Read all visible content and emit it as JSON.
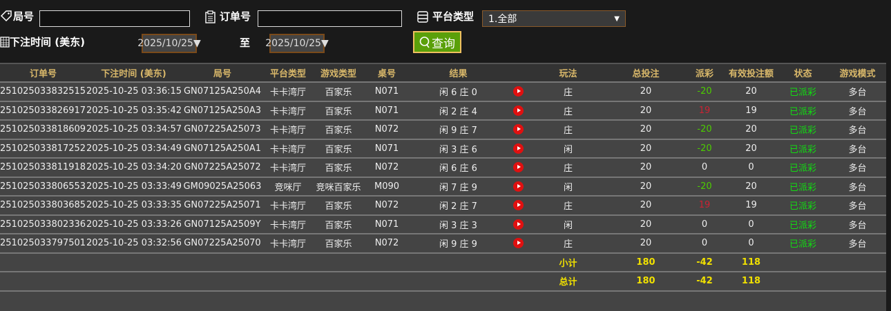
{
  "filters": {
    "round_label": "局号",
    "round_value": "",
    "order_label": "订单号",
    "order_value": "",
    "platform_label": "平台类型",
    "platform_value": "1.全部",
    "time_label": "下注时间 (美东)",
    "date_from": "2025/10/25▼",
    "to_label": "至",
    "date_to": "2025/10/25▼",
    "query_label": "查询"
  },
  "table": {
    "headers": [
      "订单号",
      "下注时间 (美东)",
      "局号",
      "平台类型",
      "游戏类型",
      "桌号",
      "结果",
      "",
      "玩法",
      "总投注",
      "派彩",
      "有效投注额",
      "状态",
      "游戏模式"
    ],
    "rows": [
      {
        "order": "251025033832515",
        "time": "2025-10-25 03:36:15",
        "round": "GN07125A250A4",
        "platform": "卡卡湾厅",
        "game": "百家乐",
        "table": "N071",
        "result": "闲 6 庄 0",
        "play": "庄",
        "bet": "20",
        "payout": "-20",
        "valid": "20",
        "status": "已派彩",
        "mode": "多台"
      },
      {
        "order": "251025033826917",
        "time": "2025-10-25 03:35:42",
        "round": "GN07125A250A3",
        "platform": "卡卡湾厅",
        "game": "百家乐",
        "table": "N071",
        "result": "闲 2 庄 4",
        "play": "庄",
        "bet": "20",
        "payout": "19",
        "valid": "19",
        "status": "已派彩",
        "mode": "多台"
      },
      {
        "order": "251025033818609",
        "time": "2025-10-25 03:34:57",
        "round": "GN07225A25073",
        "platform": "卡卡湾厅",
        "game": "百家乐",
        "table": "N072",
        "result": "闲 9 庄 7",
        "play": "庄",
        "bet": "20",
        "payout": "-20",
        "valid": "20",
        "status": "已派彩",
        "mode": "多台"
      },
      {
        "order": "251025033817252",
        "time": "2025-10-25 03:34:49",
        "round": "GN07125A250A1",
        "platform": "卡卡湾厅",
        "game": "百家乐",
        "table": "N071",
        "result": "闲 3 庄 6",
        "play": "闲",
        "bet": "20",
        "payout": "-20",
        "valid": "20",
        "status": "已派彩",
        "mode": "多台"
      },
      {
        "order": "251025033811918",
        "time": "2025-10-25 03:34:20",
        "round": "GN07225A25072",
        "platform": "卡卡湾厅",
        "game": "百家乐",
        "table": "N072",
        "result": "闲 6 庄 6",
        "play": "庄",
        "bet": "20",
        "payout": "0",
        "valid": "0",
        "status": "已派彩",
        "mode": "多台"
      },
      {
        "order": "251025033806553",
        "time": "2025-10-25 03:33:49",
        "round": "GM09025A25063",
        "platform": "竞咪厅",
        "game": "竞咪百家乐",
        "table": "M090",
        "result": "闲 7 庄 9",
        "play": "闲",
        "bet": "20",
        "payout": "-20",
        "valid": "20",
        "status": "已派彩",
        "mode": "多台"
      },
      {
        "order": "251025033803685",
        "time": "2025-10-25 03:33:35",
        "round": "GN07225A25071",
        "platform": "卡卡湾厅",
        "game": "百家乐",
        "table": "N072",
        "result": "闲 2 庄 7",
        "play": "庄",
        "bet": "20",
        "payout": "19",
        "valid": "19",
        "status": "已派彩",
        "mode": "多台"
      },
      {
        "order": "251025033802336",
        "time": "2025-10-25 03:33:26",
        "round": "GN07125A2509Y",
        "platform": "卡卡湾厅",
        "game": "百家乐",
        "table": "N071",
        "result": "闲 3 庄 3",
        "play": "闲",
        "bet": "20",
        "payout": "0",
        "valid": "0",
        "status": "已派彩",
        "mode": "多台"
      },
      {
        "order": "251025033797501",
        "time": "2025-10-25 03:32:56",
        "round": "GN07225A25070",
        "platform": "卡卡湾厅",
        "game": "百家乐",
        "table": "N072",
        "result": "闲 9 庄 9",
        "play": "庄",
        "bet": "20",
        "payout": "0",
        "valid": "0",
        "status": "已派彩",
        "mode": "多台"
      }
    ],
    "subtotal": {
      "label": "小计",
      "bet": "180",
      "payout": "-42",
      "valid": "118"
    },
    "total": {
      "label": "总计",
      "bet": "180",
      "payout": "-42",
      "valid": "118"
    }
  },
  "colors": {
    "positive_payout": "#4ccc00",
    "negative_payout": "#cc2233",
    "status": "#11dd11",
    "header_text": "#d9b86a",
    "total_text": "#f0e000",
    "query_button": "#5aa00a"
  }
}
